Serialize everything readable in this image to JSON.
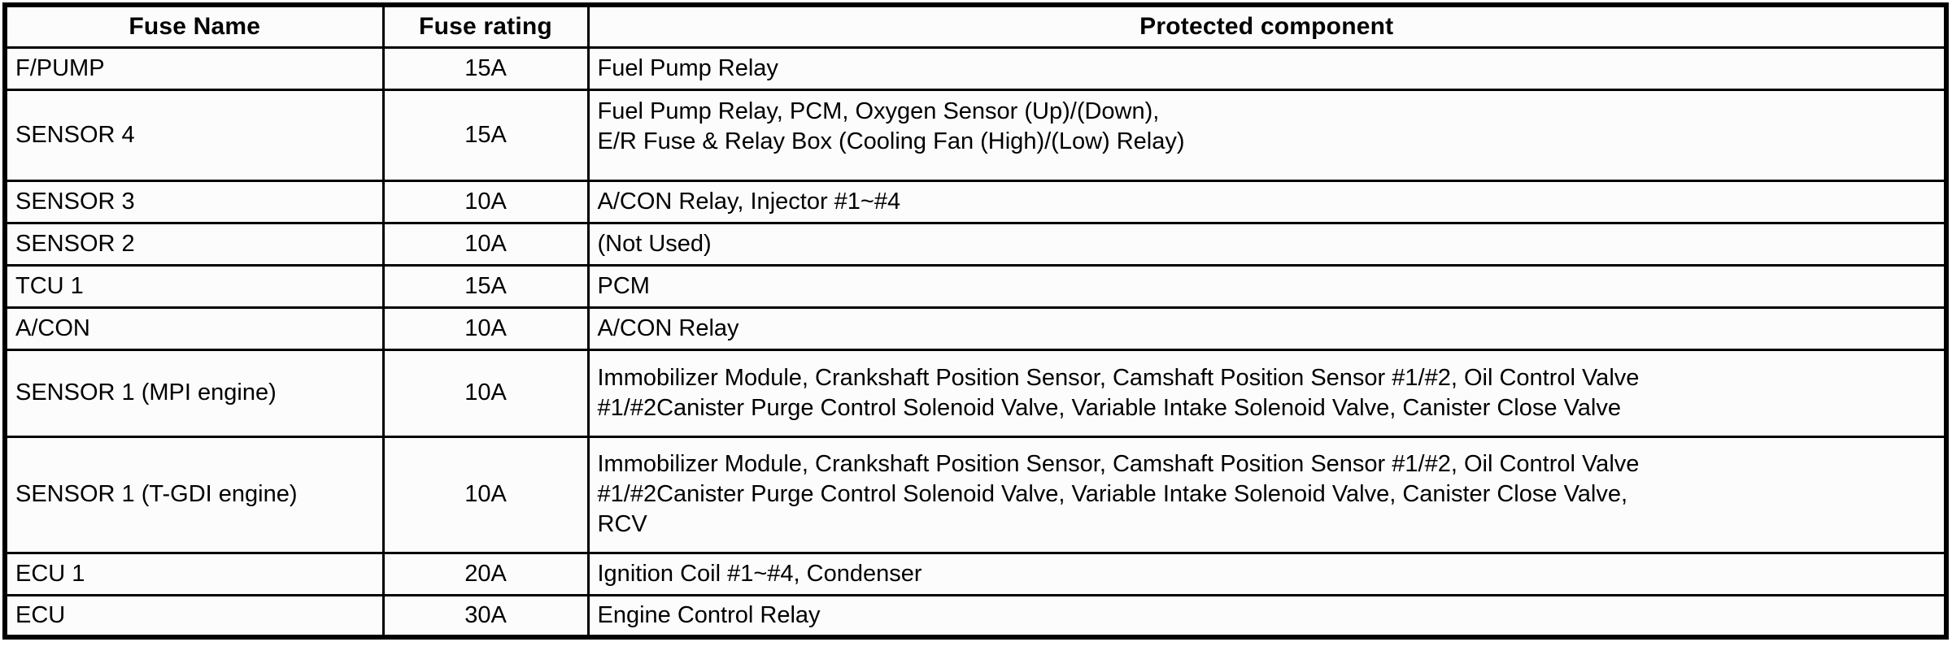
{
  "table": {
    "columns": [
      {
        "label": "Fuse Name"
      },
      {
        "label": "Fuse rating"
      },
      {
        "label": "Protected component"
      }
    ],
    "rows": [
      {
        "fuse_name": "F/PUMP",
        "fuse_rating": "15A",
        "protected_component": "Fuel Pump Relay"
      },
      {
        "fuse_name": "SENSOR 4",
        "fuse_rating": "15A",
        "protected_component": "Fuel Pump Relay, PCM, Oxygen Sensor (Up)/(Down),\nE/R Fuse & Relay Box (Cooling Fan (High)/(Low) Relay)"
      },
      {
        "fuse_name": "SENSOR 3",
        "fuse_rating": "10A",
        "protected_component": "A/CON Relay, Injector #1~#4"
      },
      {
        "fuse_name": "SENSOR 2",
        "fuse_rating": "10A",
        "protected_component": "(Not Used)"
      },
      {
        "fuse_name": "TCU 1",
        "fuse_rating": "15A",
        "protected_component": "PCM"
      },
      {
        "fuse_name": "A/CON",
        "fuse_rating": "10A",
        "protected_component": "A/CON Relay"
      },
      {
        "fuse_name": "SENSOR 1 (MPI engine)",
        "fuse_rating": "10A",
        "protected_component": "Immobilizer Module, Crankshaft Position Sensor, Camshaft Position Sensor #1/#2, Oil Control Valve\n#1/#2Canister Purge Control Solenoid Valve, Variable Intake Solenoid Valve, Canister Close Valve"
      },
      {
        "fuse_name": "SENSOR 1 (T-GDI engine)",
        "fuse_rating": "10A",
        "protected_component": "Immobilizer Module, Crankshaft Position Sensor, Camshaft Position Sensor #1/#2, Oil Control Valve\n#1/#2Canister Purge Control Solenoid Valve, Variable Intake Solenoid Valve, Canister Close Valve,\nRCV"
      },
      {
        "fuse_name": "ECU 1",
        "fuse_rating": "20A",
        "protected_component": "Ignition Coil #1~#4, Condenser"
      },
      {
        "fuse_name": "ECU",
        "fuse_rating": "30A",
        "protected_component": "Engine Control Relay"
      }
    ]
  },
  "colors": {
    "border": "#000000",
    "cell_background": "#fcfcfc",
    "text": "#000000"
  }
}
